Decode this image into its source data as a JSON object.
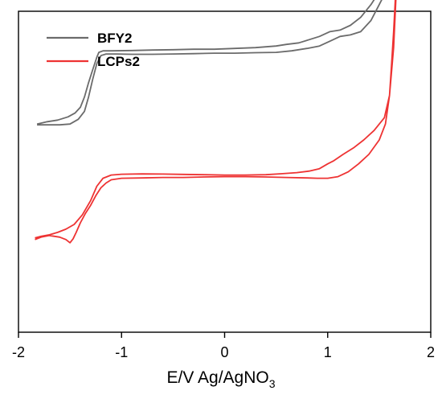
{
  "chart_data": {
    "type": "line",
    "title": "",
    "xlabel": {
      "main": "E/V Ag/AgNO",
      "subscript": "3"
    },
    "ylabel": "",
    "xlim": [
      -2,
      2
    ],
    "xticks": [
      "-2",
      "-1",
      "0",
      "1",
      "2"
    ],
    "y_ticks_shown": false,
    "grid": false,
    "legend": {
      "position": "top-left"
    },
    "series": [
      {
        "name": "BFY2",
        "color": "#6b6b6b",
        "x": [
          -1.82,
          -1.72,
          -1.62,
          -1.52,
          -1.45,
          -1.4,
          -1.36,
          -1.32,
          -1.28,
          -1.24,
          -1.22,
          -1.18,
          -1.1,
          -0.9,
          -0.7,
          -0.5,
          -0.3,
          -0.1,
          0.1,
          0.3,
          0.5,
          0.6,
          0.72,
          0.82,
          0.92,
          1.02,
          1.12,
          1.22,
          1.32,
          1.42,
          1.5,
          1.56,
          1.62,
          1.68,
          1.64,
          1.58,
          1.5,
          1.42,
          1.32,
          1.22,
          1.12,
          1.02,
          0.92,
          0.8,
          0.65,
          0.5,
          0.3,
          0.1,
          -0.1,
          -0.3,
          -0.5,
          -0.7,
          -0.9,
          -1.05,
          -1.15,
          -1.2,
          -1.24,
          -1.28,
          -1.32,
          -1.36,
          -1.42,
          -1.5,
          -1.6,
          -1.7,
          -1.82
        ],
        "y": [
          0.12,
          0.135,
          0.145,
          0.165,
          0.19,
          0.225,
          0.29,
          0.38,
          0.46,
          0.54,
          0.57,
          0.58,
          0.58,
          0.582,
          0.585,
          0.587,
          0.59,
          0.59,
          0.595,
          0.6,
          0.61,
          0.62,
          0.63,
          0.65,
          0.67,
          0.7,
          0.71,
          0.74,
          0.79,
          0.87,
          0.95,
          1.02,
          1.1,
          1.16,
          1.06,
          0.97,
          0.87,
          0.77,
          0.7,
          0.68,
          0.67,
          0.64,
          0.61,
          0.595,
          0.58,
          0.57,
          0.568,
          0.565,
          0.565,
          0.562,
          0.56,
          0.558,
          0.558,
          0.56,
          0.56,
          0.55,
          0.5,
          0.4,
          0.29,
          0.2,
          0.15,
          0.12,
          0.115,
          0.115,
          0.115
        ]
      },
      {
        "name": "LCPs2",
        "color": "#ee3333",
        "x": [
          -1.84,
          -1.78,
          -1.7,
          -1.6,
          -1.54,
          -1.5,
          -1.47,
          -1.44,
          -1.4,
          -1.35,
          -1.3,
          -1.25,
          -1.2,
          -1.15,
          -1.1,
          -1.0,
          -0.8,
          -0.6,
          -0.4,
          -0.2,
          0.0,
          0.2,
          0.4,
          0.6,
          0.8,
          0.9,
          1.0,
          1.1,
          1.2,
          1.3,
          1.4,
          1.5,
          1.56,
          1.6,
          1.64,
          1.68,
          1.66,
          1.64,
          1.62,
          1.6,
          1.55,
          1.45,
          1.35,
          1.25,
          1.15,
          1.06,
          1.0,
          0.92,
          0.82,
          0.7,
          0.55,
          0.4,
          0.2,
          0.0,
          -0.2,
          -0.4,
          -0.6,
          -0.8,
          -1.0,
          -1.1,
          -1.18,
          -1.24,
          -1.3,
          -1.38,
          -1.46,
          -1.54,
          -1.62,
          -1.7,
          -1.78,
          -1.84
        ],
        "y": [
          -0.605,
          -0.59,
          -0.58,
          -0.59,
          -0.605,
          -0.625,
          -0.6,
          -0.56,
          -0.5,
          -0.44,
          -0.39,
          -0.33,
          -0.28,
          -0.25,
          -0.23,
          -0.22,
          -0.218,
          -0.215,
          -0.215,
          -0.212,
          -0.21,
          -0.21,
          -0.212,
          -0.215,
          -0.218,
          -0.22,
          -0.22,
          -0.21,
          -0.18,
          -0.13,
          -0.07,
          0.02,
          0.12,
          0.3,
          0.6,
          1.16,
          0.95,
          0.7,
          0.5,
          0.3,
          0.16,
          0.08,
          0.02,
          -0.03,
          -0.07,
          -0.11,
          -0.13,
          -0.16,
          -0.175,
          -0.185,
          -0.192,
          -0.198,
          -0.2,
          -0.2,
          -0.198,
          -0.196,
          -0.194,
          -0.193,
          -0.195,
          -0.2,
          -0.22,
          -0.27,
          -0.36,
          -0.45,
          -0.51,
          -0.54,
          -0.56,
          -0.575,
          -0.585,
          -0.595
        ]
      }
    ]
  }
}
